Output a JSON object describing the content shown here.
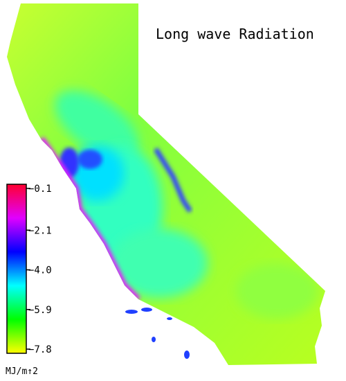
{
  "title": "Long wave Radiation",
  "colorbar": {
    "unit": "MJ/m↑2",
    "colors": [
      "#ff0030",
      "#e000ff",
      "#0000ff",
      "#00ffff",
      "#00ff00",
      "#ffff00"
    ],
    "ticks": [
      {
        "value": -0.1,
        "label": "−0.1"
      },
      {
        "value": -2.1,
        "label": "−2.1"
      },
      {
        "value": -4.0,
        "label": "−4.0"
      },
      {
        "value": -5.9,
        "label": "−5.9"
      },
      {
        "value": -7.8,
        "label": "−7.8"
      }
    ]
  }
}
